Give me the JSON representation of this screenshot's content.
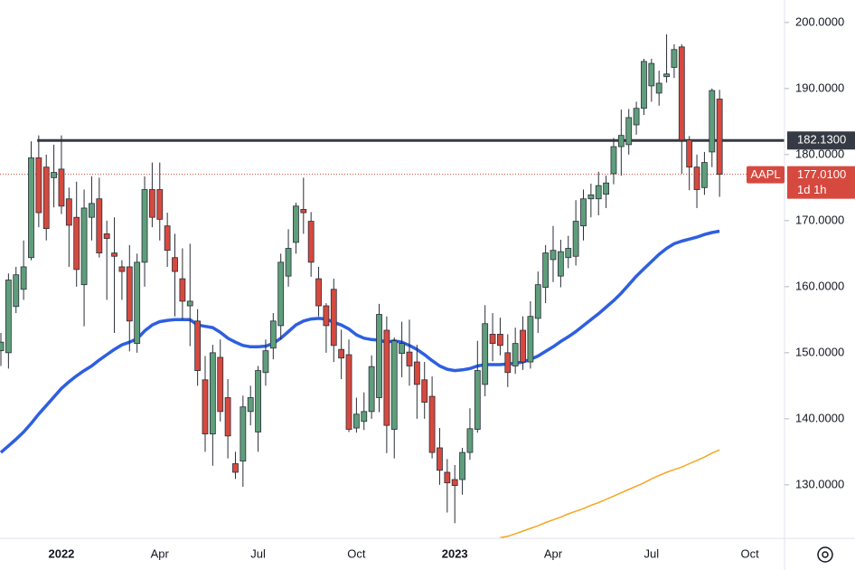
{
  "chart_data": {
    "type": "candlestick",
    "categories": [
      null,
      null,
      null,
      null,
      null,
      null,
      null,
      null,
      "2022",
      null,
      null,
      null,
      null,
      null,
      null,
      null,
      null,
      null,
      null,
      null,
      null,
      "Apr",
      null,
      null,
      null,
      null,
      null,
      null,
      null,
      null,
      null,
      null,
      null,
      null,
      "Jul",
      null,
      null,
      null,
      null,
      null,
      null,
      null,
      null,
      null,
      null,
      null,
      null,
      "Oct",
      null,
      null,
      null,
      null,
      null,
      null,
      null,
      null,
      null,
      null,
      null,
      null,
      "2023",
      null,
      null,
      null,
      null,
      null,
      null,
      null,
      null,
      null,
      null,
      null,
      null,
      "Apr",
      null,
      null,
      null,
      null,
      null,
      null,
      null,
      null,
      null,
      null,
      null,
      null,
      "Jul",
      null,
      null,
      null,
      null,
      null,
      null,
      null,
      null,
      null,
      null,
      null,
      null,
      "Oct"
    ],
    "open": [
      150.3,
      150,
      157,
      159.6,
      164.4,
      179.5,
      178.1,
      176.5,
      177.8,
      173.3,
      170.5,
      160.3,
      170.5,
      173.3,
      168,
      165.1,
      163,
      163,
      151.4,
      163.7,
      174.7,
      174.7,
      169.2,
      164.4,
      161.2,
      157.1,
      154.8,
      145.9,
      137.7,
      149.3,
      143.2,
      133.2,
      133.6,
      141.1,
      138,
      147,
      150.7,
      154.1,
      161.6,
      166.7,
      171.7,
      169.9,
      161.2,
      157.1,
      159.6,
      150.5,
      149.7,
      138.6,
      139.6,
      141.1,
      143.2,
      153.4,
      138.4,
      149.9,
      150.1,
      148.6,
      145.9,
      143.4,
      135.6,
      131.9,
      130.8,
      130.8,
      134.9,
      138.4,
      145.2,
      152.8,
      152.8,
      150,
      148,
      153.4,
      148.6,
      155.2,
      159.9,
      164.1,
      161.6,
      164.4,
      164.6,
      169.2,
      173.3,
      173.3,
      174,
      177.1,
      181.2,
      181.5,
      184.5,
      187,
      190.4,
      189.3,
      191.8,
      193.2,
      196.3,
      182.2,
      178.1,
      175,
      180.4,
      188.4,
      null,
      null,
      null,
      null
    ],
    "high": [
      153,
      162,
      163,
      167,
      182,
      182.9,
      180,
      181.5,
      182.9,
      175,
      175.9,
      174.7,
      176.7,
      176.5,
      170,
      170.5,
      164,
      166.3,
      165,
      176.7,
      178.8,
      178.8,
      171.2,
      168,
      165.8,
      166.5,
      156.6,
      149.5,
      151.2,
      152,
      146,
      135,
      143.5,
      145,
      148,
      152,
      156,
      165,
      168.7,
      172.7,
      176.5,
      171.3,
      163,
      157.5,
      161.2,
      153.5,
      152,
      143.2,
      144,
      149.6,
      157.4,
      155.5,
      152.3,
      154.7,
      155,
      151.2,
      148.6,
      146.4,
      138.6,
      133.9,
      133,
      135.6,
      141.6,
      151.8,
      157.2,
      156,
      155.3,
      152.8,
      153.8,
      155.5,
      157.8,
      162.3,
      166.3,
      169.2,
      167.1,
      167.7,
      173.1,
      174.7,
      175.6,
      177.4,
      176.8,
      182.5,
      186.8,
      186.9,
      188,
      194.5,
      194.5,
      192.7,
      198.2,
      196.7,
      196.7,
      182.8,
      180,
      180.4,
      190,
      189.8,
      null,
      null,
      null,
      null
    ],
    "low": [
      148,
      147.6,
      156,
      158,
      164,
      169,
      167,
      172,
      171,
      163,
      160,
      154,
      167,
      164.4,
      158,
      153,
      158,
      150.2,
      150,
      160,
      169,
      167,
      163,
      155.5,
      155,
      151,
      145,
      135,
      132.9,
      139.6,
      134,
      130.9,
      129.7,
      139,
      135,
      145,
      149,
      152,
      160,
      165,
      168,
      161.5,
      155.5,
      150,
      148.6,
      146,
      138,
      137.9,
      138.3,
      140,
      141,
      134.8,
      134,
      146.3,
      145,
      140,
      140,
      134,
      130,
      125.8,
      124.2,
      128.5,
      133.8,
      137.9,
      143.4,
      148.7,
      149.6,
      144.8,
      146.8,
      147.4,
      147.6,
      153,
      157.5,
      160.7,
      159.9,
      162.8,
      163.2,
      167,
      170.5,
      170.8,
      171.9,
      175.5,
      176.8,
      180,
      183,
      186,
      188,
      187.4,
      190.9,
      191.6,
      177.1,
      174.6,
      171.9,
      173.9,
      178.1,
      173.6,
      null,
      null,
      null,
      null
    ],
    "close": [
      151.6,
      161,
      161.8,
      163,
      179.5,
      171.2,
      168.8,
      177.3,
      172.2,
      169.3,
      162.6,
      171.9,
      172.6,
      165.1,
      167.3,
      164.6,
      162.3,
      154.8,
      163.7,
      174.7,
      170.5,
      170.2,
      165.5,
      162.3,
      157.8,
      157.8,
      147.3,
      137.7,
      150,
      141.1,
      137.4,
      131.9,
      141.8,
      143.2,
      147.3,
      150.3,
      154.8,
      163.7,
      165.8,
      172.2,
      171.2,
      163.7,
      157.1,
      154.1,
      151.1,
      149.2,
      138.4,
      140.7,
      141.1,
      147.9,
      155.8,
      139,
      151.8,
      151.4,
      148,
      145.2,
      142.5,
      134.9,
      132.2,
      130.3,
      129.9,
      134.9,
      138.5,
      147.3,
      154.4,
      151.4,
      151.1,
      147,
      151.4,
      148.6,
      155.5,
      160.3,
      165.1,
      165.5,
      165.3,
      165.8,
      169.9,
      173.3,
      173.9,
      175.3,
      175.7,
      181.2,
      182.9,
      185.6,
      187,
      194.1,
      193.8,
      190.8,
      192.2,
      195.9,
      182.2,
      178.1,
      174.7,
      178.8,
      189.7,
      177.01,
      null,
      null,
      null,
      null
    ],
    "up_color": "#5f9e7b",
    "down_color": "#d6493f",
    "series": [
      {
        "color": "#2e5fe0",
        "values": [
          134.9,
          135.9,
          136.9,
          138,
          139.3,
          140.7,
          142,
          143.3,
          144.6,
          145.6,
          146.5,
          147.3,
          148,
          148.9,
          149.7,
          150.5,
          151.2,
          151.6,
          152.1,
          153.3,
          154.2,
          154.7,
          154.9,
          155,
          155,
          155,
          154.2,
          154,
          153.8,
          153.1,
          152.2,
          151.6,
          151.1,
          150.9,
          150.9,
          151,
          151.4,
          152.2,
          153.2,
          154.2,
          154.8,
          155.1,
          155.2,
          155.1,
          154.6,
          154.2,
          153.6,
          152.7,
          152.2,
          152,
          151.9,
          151.6,
          151.8,
          151.6,
          151.1,
          150.5,
          149.7,
          148.8,
          148,
          147.5,
          147.3,
          147.4,
          147.6,
          148,
          148.2,
          148.2,
          148.2,
          148.3,
          148.4,
          148.6,
          149,
          149.5,
          150.2,
          150.9,
          151.7,
          152.4,
          153.2,
          154.1,
          155,
          155.9,
          156.9,
          157.9,
          159,
          160.3,
          161.6,
          162.7,
          163.8,
          164.9,
          165.8,
          166.5,
          166.9,
          167.2,
          167.5,
          167.9,
          168.2,
          168.4,
          null,
          null,
          null,
          null
        ]
      },
      {
        "color": "#f5a623",
        "values": [
          null,
          null,
          null,
          null,
          null,
          null,
          null,
          null,
          null,
          null,
          null,
          null,
          null,
          null,
          null,
          null,
          null,
          null,
          null,
          null,
          null,
          null,
          null,
          null,
          null,
          null,
          null,
          null,
          null,
          null,
          null,
          null,
          null,
          null,
          null,
          null,
          null,
          null,
          null,
          null,
          null,
          null,
          null,
          null,
          null,
          null,
          null,
          null,
          null,
          null,
          null,
          null,
          null,
          null,
          null,
          null,
          null,
          null,
          null,
          null,
          null,
          null,
          null,
          null,
          null,
          null,
          122,
          122.2,
          122.6,
          123,
          123.4,
          123.8,
          124.3,
          124.7,
          125.1,
          125.6,
          126,
          126.4,
          126.9,
          127.3,
          127.8,
          128.3,
          128.8,
          129.3,
          129.8,
          130.3,
          130.9,
          131.4,
          131.9,
          132.3,
          132.7,
          133.2,
          133.7,
          134.2,
          134.8,
          135.3,
          null,
          null,
          null,
          null
        ]
      }
    ],
    "hline": {
      "value": 182.13,
      "label": "182.1300",
      "color": "#363a45"
    },
    "last_price": {
      "symbol": "AAPL",
      "value": 177.01,
      "label": "177.0100",
      "countdown": "1d 1h",
      "color": "#d6493f"
    },
    "ylim": [
      121.9,
      203.4
    ],
    "yticks": [
      {
        "value": 130,
        "label": "130.0000"
      },
      {
        "value": 140,
        "label": "140.0000"
      },
      {
        "value": 150,
        "label": "150.0000"
      },
      {
        "value": 160,
        "label": "160.0000"
      },
      {
        "value": 170,
        "label": "170.0000"
      },
      {
        "value": 180,
        "label": "180.0000"
      },
      {
        "value": 190,
        "label": "190.0000"
      },
      {
        "value": 200,
        "label": "200.0000"
      }
    ]
  }
}
